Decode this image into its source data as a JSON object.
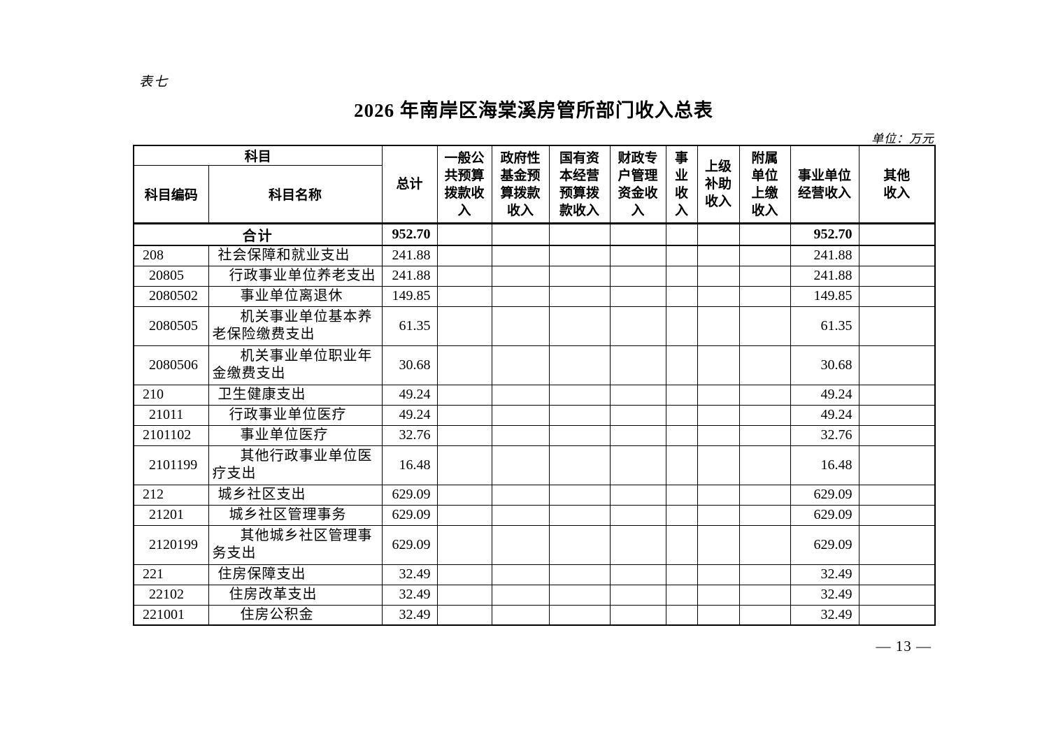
{
  "page": {
    "table_label": "表七",
    "title": "2026 年南岸区海棠溪房管所部门收入总表",
    "unit_note": "单位：万元",
    "page_number": "— 13 —"
  },
  "table": {
    "header": {
      "subject_group": "科目",
      "subject_code": "科目编码",
      "subject_name": "科目名称",
      "columns": [
        "总计",
        "一般公共预算拨款收入",
        "政府性基金预算拨款收入",
        "国有资本经营预算拨款收入",
        "财政专户管理资金收入",
        "事业收入",
        "上级补助收入",
        "附属单位上缴收入",
        "事业单位经营收入",
        "其他收入"
      ]
    },
    "total_row": {
      "label": "合计",
      "values": [
        "952.70",
        "",
        "",
        "",
        "",
        "",
        "",
        "",
        "952.70",
        ""
      ]
    },
    "rows": [
      {
        "code": "208",
        "name": "社会保障和就业支出",
        "level": 1,
        "code_level": 1,
        "values": [
          "241.88",
          "",
          "",
          "",
          "",
          "",
          "",
          "",
          "241.88",
          ""
        ]
      },
      {
        "code": "20805",
        "name": "行政事业单位养老支出",
        "level": 2,
        "code_level": 2,
        "values": [
          "241.88",
          "",
          "",
          "",
          "",
          "",
          "",
          "",
          "241.88",
          ""
        ]
      },
      {
        "code": "2080502",
        "name": "事业单位离退休",
        "level": 3,
        "code_level": 2,
        "values": [
          "149.85",
          "",
          "",
          "",
          "",
          "",
          "",
          "",
          "149.85",
          ""
        ]
      },
      {
        "code": "2080505",
        "name": "机关事业单位基本养老保险缴费支出",
        "level": 3,
        "code_level": 2,
        "values": [
          "61.35",
          "",
          "",
          "",
          "",
          "",
          "",
          "",
          "61.35",
          ""
        ]
      },
      {
        "code": "2080506",
        "name": "机关事业单位职业年金缴费支出",
        "level": 3,
        "code_level": 2,
        "values": [
          "30.68",
          "",
          "",
          "",
          "",
          "",
          "",
          "",
          "30.68",
          ""
        ]
      },
      {
        "code": "210",
        "name": "卫生健康支出",
        "level": 1,
        "code_level": 1,
        "values": [
          "49.24",
          "",
          "",
          "",
          "",
          "",
          "",
          "",
          "49.24",
          ""
        ]
      },
      {
        "code": "21011",
        "name": "行政事业单位医疗",
        "level": 2,
        "code_level": 2,
        "values": [
          "49.24",
          "",
          "",
          "",
          "",
          "",
          "",
          "",
          "49.24",
          ""
        ]
      },
      {
        "code": "2101102",
        "name": "事业单位医疗",
        "level": 3,
        "code_level": 1,
        "values": [
          "32.76",
          "",
          "",
          "",
          "",
          "",
          "",
          "",
          "32.76",
          ""
        ]
      },
      {
        "code": "2101199",
        "name": "其他行政事业单位医疗支出",
        "level": 3,
        "code_level": 2,
        "values": [
          "16.48",
          "",
          "",
          "",
          "",
          "",
          "",
          "",
          "16.48",
          ""
        ]
      },
      {
        "code": "212",
        "name": "城乡社区支出",
        "level": 1,
        "code_level": 1,
        "values": [
          "629.09",
          "",
          "",
          "",
          "",
          "",
          "",
          "",
          "629.09",
          ""
        ]
      },
      {
        "code": "21201",
        "name": "城乡社区管理事务",
        "level": 2,
        "code_level": 2,
        "values": [
          "629.09",
          "",
          "",
          "",
          "",
          "",
          "",
          "",
          "629.09",
          ""
        ]
      },
      {
        "code": "2120199",
        "name": "其他城乡社区管理事务支出",
        "level": 3,
        "code_level": 2,
        "values": [
          "629.09",
          "",
          "",
          "",
          "",
          "",
          "",
          "",
          "629.09",
          ""
        ]
      },
      {
        "code": "221",
        "name": "住房保障支出",
        "level": 1,
        "code_level": 1,
        "values": [
          "32.49",
          "",
          "",
          "",
          "",
          "",
          "",
          "",
          "32.49",
          ""
        ]
      },
      {
        "code": "22102",
        "name": "住房改革支出",
        "level": 2,
        "code_level": 2,
        "values": [
          "32.49",
          "",
          "",
          "",
          "",
          "",
          "",
          "",
          "32.49",
          ""
        ]
      },
      {
        "code": "221001",
        "name": "住房公积金",
        "level": 3,
        "code_level": 1,
        "values": [
          "32.49",
          "",
          "",
          "",
          "",
          "",
          "",
          "",
          "32.49",
          ""
        ]
      }
    ]
  }
}
